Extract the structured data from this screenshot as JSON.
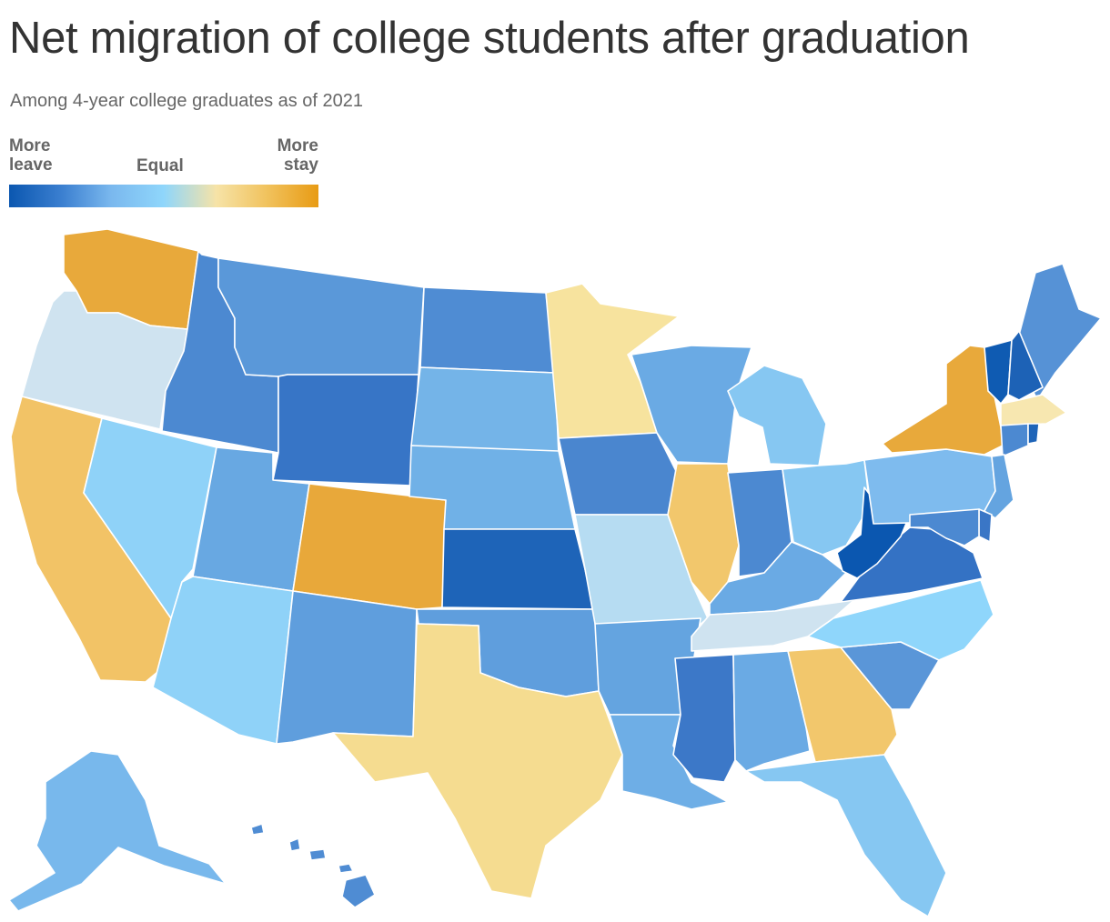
{
  "title": "Net migration of college students after graduation",
  "subtitle": "Among 4-year college graduates as of 2021",
  "legend": {
    "left_line1": "More",
    "left_line2": "leave",
    "middle": "Equal",
    "right_line1": "More",
    "right_line2": "stay",
    "colors": [
      "#0b57b0",
      "#3b7fd0",
      "#7ab8ee",
      "#8fd6fb",
      "#f6e3a7",
      "#f1c35f",
      "#e89b14"
    ]
  },
  "map_data": {
    "states": [
      {
        "id": "WA",
        "color": "#e8a93b"
      },
      {
        "id": "OR",
        "color": "#cfe3f0"
      },
      {
        "id": "CA",
        "color": "#f2c366"
      },
      {
        "id": "ID",
        "color": "#4c89d1"
      },
      {
        "id": "NV",
        "color": "#8fd2f8"
      },
      {
        "id": "MT",
        "color": "#5a98d9"
      },
      {
        "id": "WY",
        "color": "#3775c6"
      },
      {
        "id": "UT",
        "color": "#68a8e2"
      },
      {
        "id": "AZ",
        "color": "#8fd2f8"
      },
      {
        "id": "CO",
        "color": "#e8a83a"
      },
      {
        "id": "NM",
        "color": "#5f9edd"
      },
      {
        "id": "ND",
        "color": "#4f8cd3"
      },
      {
        "id": "SD",
        "color": "#74b4e8"
      },
      {
        "id": "NE",
        "color": "#70b1e7"
      },
      {
        "id": "KS",
        "color": "#1e64b8"
      },
      {
        "id": "OK",
        "color": "#5f9edd"
      },
      {
        "id": "TX",
        "color": "#f5dc90"
      },
      {
        "id": "MN",
        "color": "#f7e39e"
      },
      {
        "id": "IA",
        "color": "#4a86cf"
      },
      {
        "id": "MO",
        "color": "#b6dcf2"
      },
      {
        "id": "AR",
        "color": "#64a4e0"
      },
      {
        "id": "LA",
        "color": "#6eaee6"
      },
      {
        "id": "WI",
        "color": "#6aaae4"
      },
      {
        "id": "IL",
        "color": "#f2c76c"
      },
      {
        "id": "MI",
        "color": "#86c7f2"
      },
      {
        "id": "IN",
        "color": "#4c89d1"
      },
      {
        "id": "OH",
        "color": "#86c7f2"
      },
      {
        "id": "KY",
        "color": "#6aaae4"
      },
      {
        "id": "TN",
        "color": "#cfe3f0"
      },
      {
        "id": "MS",
        "color": "#3c78c8"
      },
      {
        "id": "AL",
        "color": "#6aaae4"
      },
      {
        "id": "GA",
        "color": "#f2c76c"
      },
      {
        "id": "FL",
        "color": "#86c7f2"
      },
      {
        "id": "SC",
        "color": "#5a96d8"
      },
      {
        "id": "NC",
        "color": "#8fd6fb"
      },
      {
        "id": "VA",
        "color": "#3472c4"
      },
      {
        "id": "WV",
        "color": "#0b57b0"
      },
      {
        "id": "PA",
        "color": "#7ebbee"
      },
      {
        "id": "NY",
        "color": "#e8a93b"
      },
      {
        "id": "ME",
        "color": "#5692d6"
      },
      {
        "id": "VT",
        "color": "#0f5bb2"
      },
      {
        "id": "NH",
        "color": "#1d62b6"
      },
      {
        "id": "MA",
        "color": "#f7e7b0"
      },
      {
        "id": "CT",
        "color": "#4c89d1"
      },
      {
        "id": "RI",
        "color": "#1e64b8"
      },
      {
        "id": "NJ",
        "color": "#64a4e0"
      },
      {
        "id": "DE",
        "color": "#3a76c6"
      },
      {
        "id": "MD",
        "color": "#4c89d1"
      },
      {
        "id": "AK",
        "color": "#78b8ec"
      },
      {
        "id": "HI",
        "color": "#4f8cd3"
      }
    ]
  }
}
